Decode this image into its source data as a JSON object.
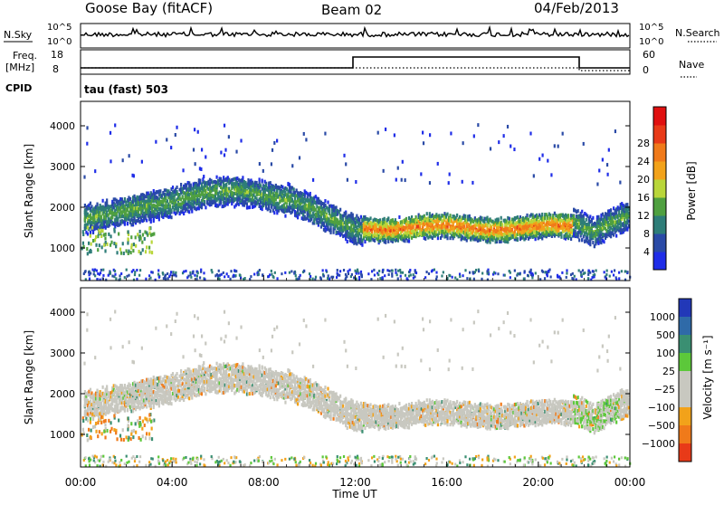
{
  "header": {
    "station": "Goose Bay (fitACF)",
    "beam": "Beam 02",
    "date": "04/Feb/2013"
  },
  "strip": {
    "nsky_label": "N.Sky",
    "nsky_ticks": [
      "10^5",
      "10^0"
    ],
    "nsearch_label": "N.Search",
    "freq_label": "Freq.",
    "freq_unit": "[MHz]",
    "freq_ticks": [
      "18",
      "8"
    ],
    "nave_label": "Nave",
    "nave_ticks": [
      "60",
      "0"
    ],
    "cpid_label": "CPID",
    "cpid_value": "tau (fast) 503"
  },
  "chart_data": [
    {
      "type": "heatmap",
      "name": "power-panel",
      "ylabel": "Slant Range [km]",
      "ylim": [
        200,
        4600
      ],
      "yticks": [
        1000,
        2000,
        3000,
        4000
      ],
      "xlim": [
        0,
        24
      ],
      "colorbar": {
        "label": "Power [dB]",
        "ticks": [
          "4",
          "8",
          "12",
          "16",
          "20",
          "24",
          "28"
        ],
        "colors": [
          "#1f2de8",
          "#2a4aa6",
          "#2e7d78",
          "#4fa040",
          "#b9d63a",
          "#f2a21a",
          "#f07a1a",
          "#e83a18",
          "#e01010"
        ]
      }
    },
    {
      "type": "heatmap",
      "name": "velocity-panel",
      "ylabel": "Slant Range [km]",
      "ylim": [
        200,
        4600
      ],
      "yticks": [
        1000,
        2000,
        3000,
        4000
      ],
      "xlim": [
        0,
        24
      ],
      "colorbar": {
        "label": "Velocity [m s⁻¹]",
        "ticks": [
          "1000",
          "500",
          "100",
          "25",
          "−25",
          "−100",
          "−500",
          "−1000"
        ],
        "colors": [
          "#2238b8",
          "#2f6aa8",
          "#3a8f72",
          "#5cc83a",
          "#c8c8c0",
          "#c8c8c0",
          "#f2a21a",
          "#f07a1a",
          "#e83a18"
        ]
      },
      "xticks": [
        "00:00",
        "04:00",
        "08:00",
        "12:00",
        "16:00",
        "20:00",
        "00:00"
      ],
      "xlabel": "Time UT"
    }
  ]
}
